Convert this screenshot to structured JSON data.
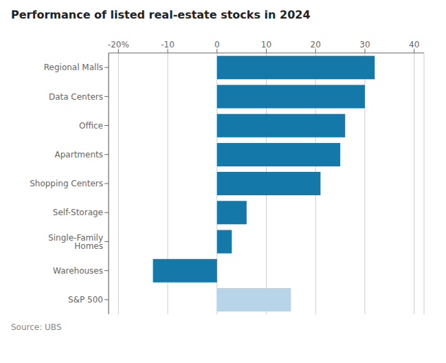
{
  "chart_data": {
    "type": "bar",
    "orientation": "horizontal",
    "title": "Performance of listed real-estate stocks in 2024",
    "annotations": [
      "Source: UBS"
    ],
    "categories": [
      "S&P 500",
      "Warehouses",
      "Single-Family Homes",
      "Self-Storage",
      "Shopping Centers",
      "Apartments",
      "Office",
      "Data Centers",
      "Regional Malls"
    ],
    "values": [
      15,
      -13,
      3,
      6,
      21,
      25,
      26,
      30,
      32
    ],
    "colors": [
      "#b8d4e8",
      "#1478a8",
      "#1478a8",
      "#1478a8",
      "#1478a8",
      "#1478a8",
      "#1478a8",
      "#1478a8",
      "#1478a8"
    ],
    "xlim": [
      -22,
      42
    ],
    "xticks": [
      {
        "value": -20,
        "label": "-20%"
      },
      -10,
      0,
      10,
      20,
      30,
      40
    ],
    "grid": true
  }
}
